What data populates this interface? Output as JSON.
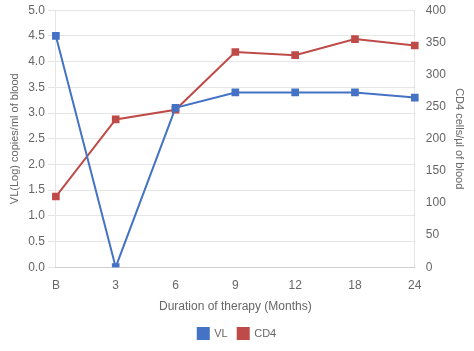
{
  "chart_data": {
    "type": "line",
    "xlabel": "Duration of therapy (Months)",
    "ylabel": "VL(Log) copies/ml of blood",
    "y2label": "CD4 cells/µl of blood",
    "categories": [
      "B",
      "3",
      "6",
      "9",
      "12",
      "18",
      "24"
    ],
    "series": [
      {
        "name": "VL",
        "color": "#4472C4",
        "marker": "square",
        "values": [
          4.5,
          0.0,
          3.1,
          3.4,
          3.4,
          3.4,
          3.3
        ]
      },
      {
        "name": "CD4",
        "color": "#BE4B48",
        "marker": "square",
        "axis": "y2",
        "values": [
          110,
          230,
          245,
          335,
          330,
          355,
          345
        ]
      }
    ],
    "ylim": [
      0,
      5
    ],
    "yticks": [
      {
        "value": 0,
        "label": "0.0"
      },
      {
        "value": 0.5,
        "label": "0.5"
      },
      {
        "value": 1,
        "label": "1.0"
      },
      {
        "value": 1.5,
        "label": "1.5"
      },
      {
        "value": 2,
        "label": "2.0"
      },
      {
        "value": 2.5,
        "label": "2.5"
      },
      {
        "value": 3,
        "label": "3.0"
      },
      {
        "value": 3.5,
        "label": "3.5"
      },
      {
        "value": 4,
        "label": "4.0"
      },
      {
        "value": 4.5,
        "label": "4.5"
      },
      {
        "value": 5,
        "label": "5.0"
      }
    ],
    "y2lim": [
      0,
      400
    ],
    "y2ticks": [
      0,
      50,
      100,
      150,
      200,
      250,
      300,
      350,
      400
    ],
    "grid": true,
    "legend": "bottom"
  }
}
